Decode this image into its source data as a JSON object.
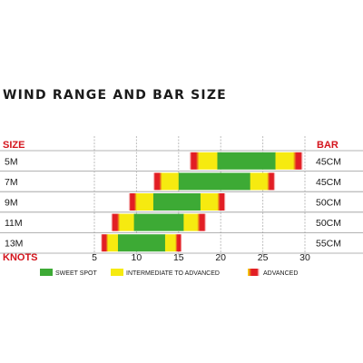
{
  "chart_data": {
    "type": "bar",
    "title": "WIND RANGE AND BAR SIZE",
    "row_header": "SIZE",
    "bar_header": "BAR",
    "xlabel": "KNOTS",
    "xlim": [
      5,
      30
    ],
    "xticks": [
      5,
      10,
      15,
      20,
      25,
      30
    ],
    "rows": [
      {
        "size": "5M",
        "bar": "45CM",
        "segments": [
          {
            "zone": "advanced",
            "from": 16.2,
            "to": 17.4
          },
          {
            "zone": "intermediate",
            "from": 17.4,
            "to": 19.6
          },
          {
            "zone": "sweet",
            "from": 19.6,
            "to": 26.5
          },
          {
            "zone": "intermediate",
            "from": 26.5,
            "to": 28.6
          },
          {
            "zone": "advanced",
            "from": 28.6,
            "to": 29.8
          }
        ]
      },
      {
        "size": "7M",
        "bar": "45CM",
        "segments": [
          {
            "zone": "advanced",
            "from": 11.9,
            "to": 13.0
          },
          {
            "zone": "intermediate",
            "from": 13.0,
            "to": 15.0
          },
          {
            "zone": "sweet",
            "from": 15.0,
            "to": 23.5
          },
          {
            "zone": "intermediate",
            "from": 23.5,
            "to": 25.5
          },
          {
            "zone": "advanced",
            "from": 25.5,
            "to": 26.5
          }
        ]
      },
      {
        "size": "9M",
        "bar": "50CM",
        "segments": [
          {
            "zone": "advanced",
            "from": 9.0,
            "to": 10.0
          },
          {
            "zone": "intermediate",
            "from": 10.0,
            "to": 12.0
          },
          {
            "zone": "sweet",
            "from": 12.0,
            "to": 17.6
          },
          {
            "zone": "intermediate",
            "from": 17.6,
            "to": 19.6
          },
          {
            "zone": "advanced",
            "from": 19.6,
            "to": 20.6
          }
        ]
      },
      {
        "size": "11M",
        "bar": "50CM",
        "segments": [
          {
            "zone": "advanced",
            "from": 6.9,
            "to": 8.0
          },
          {
            "zone": "intermediate",
            "from": 8.0,
            "to": 9.7
          },
          {
            "zone": "sweet",
            "from": 9.7,
            "to": 15.6
          },
          {
            "zone": "intermediate",
            "from": 15.6,
            "to": 17.2
          },
          {
            "zone": "advanced",
            "from": 17.2,
            "to": 18.3
          }
        ]
      },
      {
        "size": "13M",
        "bar": "55CM",
        "segments": [
          {
            "zone": "advanced",
            "from": 5.7,
            "to": 6.6
          },
          {
            "zone": "intermediate",
            "from": 6.6,
            "to": 7.8
          },
          {
            "zone": "sweet",
            "from": 7.8,
            "to": 13.4
          },
          {
            "zone": "intermediate",
            "from": 13.4,
            "to": 14.6
          },
          {
            "zone": "advanced",
            "from": 14.6,
            "to": 15.4
          }
        ]
      }
    ],
    "legend": [
      {
        "key": "sweet",
        "label": "SWEET SPOT"
      },
      {
        "key": "intermediate",
        "label": "INTERMEDIATE TO ADVANCED"
      },
      {
        "key": "advanced",
        "label": "ADVANCED"
      }
    ],
    "colors": {
      "sweet": "#3daa35",
      "intermediate": "#f6ea10",
      "advanced": "#e21e24",
      "header": "#d4141c",
      "grid": "#bdbdbd",
      "rowline": "#9a9a9a"
    }
  }
}
